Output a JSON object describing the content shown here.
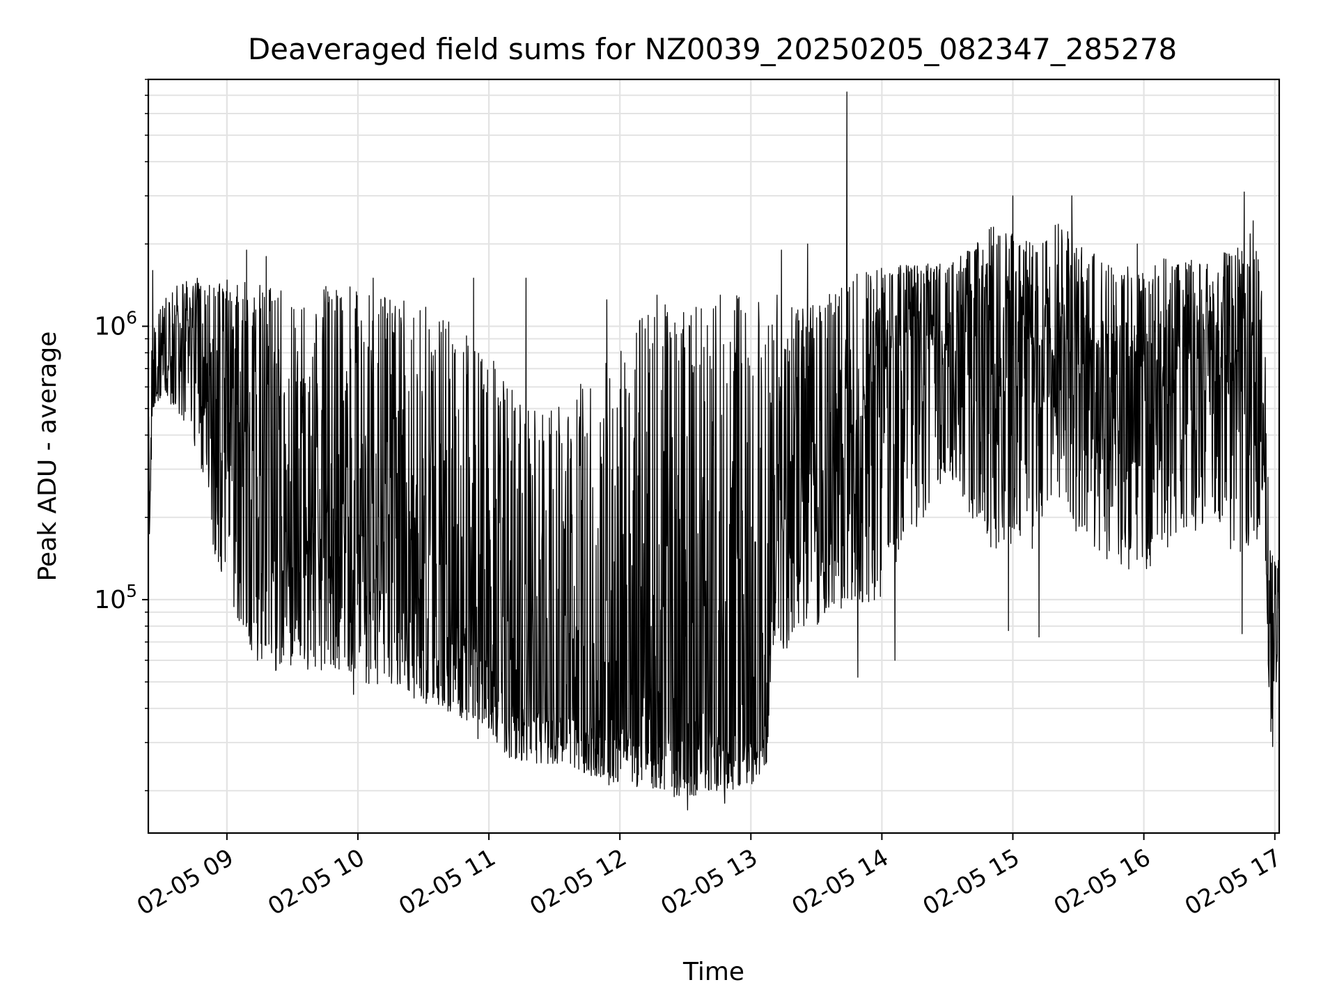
{
  "chart_data": {
    "type": "line",
    "title": "Deaveraged field sums for NZ0039_20250205_082347_285278",
    "xlabel": "Time",
    "ylabel": "Peak ADU - average",
    "y_scale": "log",
    "ylim": [
      14000,
      8000000
    ],
    "xlim": [
      "2025-02-05 08:24",
      "2025-02-05 17:02"
    ],
    "x_ticks": [
      "2025-02-05 09:00",
      "2025-02-05 10:00",
      "2025-02-05 11:00",
      "2025-02-05 12:00",
      "2025-02-05 13:00",
      "2025-02-05 14:00",
      "2025-02-05 15:00",
      "2025-02-05 16:00",
      "2025-02-05 17:00"
    ],
    "x_tick_labels": [
      "02-05 09",
      "02-05 10",
      "02-05 11",
      "02-05 12",
      "02-05 13",
      "02-05 14",
      "02-05 15",
      "02-05 16",
      "02-05 17"
    ],
    "y_tick_labels": [
      {
        "value": 100000,
        "base": "10",
        "exp": "5"
      },
      {
        "value": 1000000,
        "base": "10",
        "exp": "6"
      }
    ],
    "grid": true,
    "line_color": "#000000",
    "series": [
      {
        "x": [
          "2025-02-05 08:24",
          "2025-02-05 08:26",
          "2025-02-05 08:30",
          "2025-02-05 08:36",
          "2025-02-05 08:42",
          "2025-02-05 08:48",
          "2025-02-05 08:54",
          "2025-02-05 09:00",
          "2025-02-05 09:10",
          "2025-02-05 09:20",
          "2025-02-05 09:30",
          "2025-02-05 09:45",
          "2025-02-05 10:00",
          "2025-02-05 10:15",
          "2025-02-05 10:30",
          "2025-02-05 10:45",
          "2025-02-05 11:00",
          "2025-02-05 11:10",
          "2025-02-05 11:20",
          "2025-02-05 11:30",
          "2025-02-05 11:40",
          "2025-02-05 11:50",
          "2025-02-05 12:00",
          "2025-02-05 12:10",
          "2025-02-05 12:20",
          "2025-02-05 12:30",
          "2025-02-05 12:40",
          "2025-02-05 12:50",
          "2025-02-05 13:00",
          "2025-02-05 13:07",
          "2025-02-05 13:10",
          "2025-02-05 13:20",
          "2025-02-05 13:30",
          "2025-02-05 13:40",
          "2025-02-05 13:50",
          "2025-02-05 14:00",
          "2025-02-05 14:10",
          "2025-02-05 14:20",
          "2025-02-05 14:30",
          "2025-02-05 14:40",
          "2025-02-05 14:50",
          "2025-02-05 15:00",
          "2025-02-05 15:10",
          "2025-02-05 15:20",
          "2025-02-05 15:30",
          "2025-02-05 15:40",
          "2025-02-05 15:50",
          "2025-02-05 16:00",
          "2025-02-05 16:10",
          "2025-02-05 16:20",
          "2025-02-05 16:30",
          "2025-02-05 16:40",
          "2025-02-05 16:50",
          "2025-02-05 16:55",
          "2025-02-05 16:58",
          "2025-02-05 17:02"
        ],
        "low": [
          120000,
          500000,
          550000,
          500000,
          420000,
          300000,
          150000,
          110000,
          65000,
          55000,
          55000,
          55000,
          50000,
          46000,
          42000,
          38000,
          32000,
          26000,
          25000,
          25000,
          24000,
          22000,
          21000,
          20000,
          20000,
          18000,
          20000,
          20000,
          21000,
          24000,
          60000,
          70000,
          80000,
          90000,
          95000,
          100000,
          150000,
          200000,
          300000,
          200000,
          150000,
          150000,
          150000,
          250000,
          150000,
          150000,
          120000,
          120000,
          150000,
          150000,
          200000,
          150000,
          150000,
          200000,
          30000,
          60000
        ],
        "mid": [
          150000,
          600000,
          650000,
          800000,
          1000000,
          700000,
          500000,
          400000,
          250000,
          200000,
          180000,
          160000,
          140000,
          120000,
          100000,
          80000,
          60000,
          45000,
          40000,
          38000,
          36000,
          35000,
          34000,
          33000,
          32000,
          31000,
          32000,
          33000,
          34000,
          35000,
          150000,
          250000,
          300000,
          350000,
          450000,
          700000,
          800000,
          900000,
          1000000,
          1200000,
          1000000,
          900000,
          800000,
          900000,
          800000,
          750000,
          700000,
          700000,
          700000,
          700000,
          650000,
          600000,
          650000,
          400000,
          50000,
          110000
        ],
        "high": [
          500000,
          1000000,
          1200000,
          1400000,
          1500000,
          1500000,
          1400000,
          1500000,
          1500000,
          1400000,
          1400000,
          1400000,
          1400000,
          1300000,
          1200000,
          1000000,
          800000,
          600000,
          500000,
          500000,
          600000,
          700000,
          800000,
          1200000,
          1300000,
          1200000,
          1200000,
          1300000,
          1300000,
          1200000,
          1000000,
          1200000,
          1200000,
          1400000,
          1600000,
          1700000,
          1700000,
          1700000,
          1700000,
          1900000,
          2500000,
          2200000,
          2000000,
          2500000,
          2000000,
          1900000,
          1700000,
          1600000,
          1800000,
          1800000,
          1800000,
          1900000,
          2500000,
          1200000,
          150000,
          140000
        ]
      }
    ],
    "spikes": [
      {
        "x": "2025-02-05 08:26",
        "y": 1600000
      },
      {
        "x": "2025-02-05 09:09",
        "y": 1900000
      },
      {
        "x": "2025-02-05 09:18",
        "y": 1800000
      },
      {
        "x": "2025-02-05 10:07",
        "y": 1500000
      },
      {
        "x": "2025-02-05 10:53",
        "y": 1500000
      },
      {
        "x": "2025-02-05 11:17",
        "y": 1500000
      },
      {
        "x": "2025-02-05 11:54",
        "y": 1250000
      },
      {
        "x": "2025-02-05 12:17",
        "y": 1300000
      },
      {
        "x": "2025-02-05 12:32",
        "y": 1000000
      },
      {
        "x": "2025-02-05 12:46",
        "y": 1300000
      },
      {
        "x": "2025-02-05 13:12",
        "y": 1300000
      },
      {
        "x": "2025-02-05 13:14",
        "y": 1900000
      },
      {
        "x": "2025-02-05 13:26",
        "y": 2000000
      },
      {
        "x": "2025-02-05 13:44",
        "y": 7200000
      },
      {
        "x": "2025-02-05 14:06",
        "y": 2100000
      },
      {
        "x": "2025-02-05 14:50",
        "y": 2300000
      },
      {
        "x": "2025-02-05 15:00",
        "y": 3000000
      },
      {
        "x": "2025-02-05 15:27",
        "y": 3000000
      },
      {
        "x": "2025-02-05 15:57",
        "y": 2000000
      },
      {
        "x": "2025-02-05 16:46",
        "y": 3100000
      }
    ],
    "dips": [
      {
        "x": "2025-02-05 09:14",
        "y": 60000
      },
      {
        "x": "2025-02-05 09:58",
        "y": 45000
      },
      {
        "x": "2025-02-05 10:55",
        "y": 31000
      },
      {
        "x": "2025-02-05 11:55",
        "y": 21000
      },
      {
        "x": "2025-02-05 12:31",
        "y": 17000
      },
      {
        "x": "2025-02-05 12:48",
        "y": 18000
      },
      {
        "x": "2025-02-05 13:07",
        "y": 28000
      },
      {
        "x": "2025-02-05 13:49",
        "y": 52000
      },
      {
        "x": "2025-02-05 14:06",
        "y": 60000
      },
      {
        "x": "2025-02-05 14:58",
        "y": 77000
      },
      {
        "x": "2025-02-05 15:12",
        "y": 73000
      },
      {
        "x": "2025-02-05 16:45",
        "y": 75000
      },
      {
        "x": "2025-02-05 16:59",
        "y": 29000
      }
    ]
  }
}
